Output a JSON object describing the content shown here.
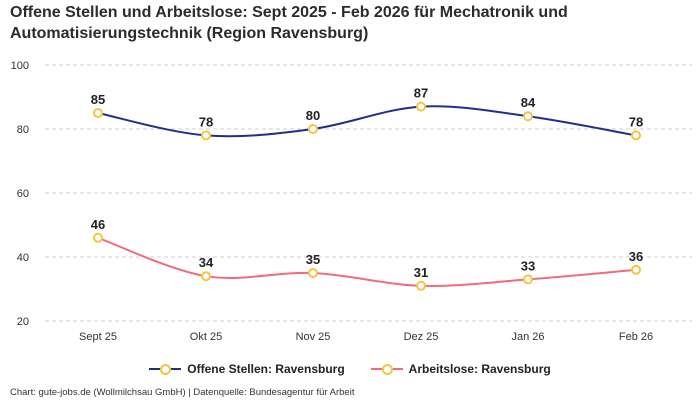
{
  "title": "Offene Stellen und Arbeitslose: Sept 2025 - Feb 2026 für Mechatronik und Automatisierungstechnik (Region Ravensburg)",
  "footer": "Chart: gute-jobs.de (Wollmilchsau GmbH) | Datenquelle: Bundesagentur für Arbeit",
  "chart_data": {
    "type": "line",
    "categories": [
      "Sept 25",
      "Okt 25",
      "Nov 25",
      "Dez 25",
      "Jan 26",
      "Feb 26"
    ],
    "ylim": [
      20,
      100
    ],
    "yticks": [
      20,
      40,
      60,
      80,
      100
    ],
    "grid": true,
    "legend_position": "bottom",
    "marker_color": "#f5c542",
    "series": [
      {
        "name": "Offene Stellen: Ravensburg",
        "color": "#1f2f8a",
        "values": [
          85,
          78,
          80,
          87,
          84,
          78
        ]
      },
      {
        "name": "Arbeitslose: Ravensburg",
        "color": "#f06b7e",
        "values": [
          46,
          34,
          35,
          31,
          33,
          36
        ]
      }
    ]
  }
}
